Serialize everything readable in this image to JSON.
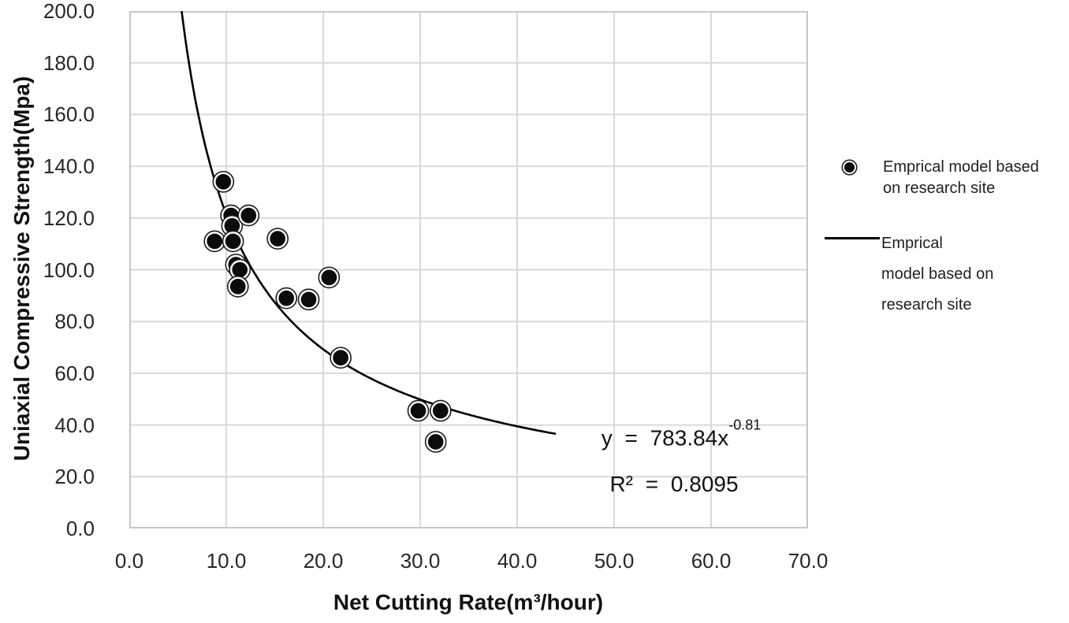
{
  "chart_data": {
    "type": "scatter",
    "title": "",
    "xlabel": "Net Cutting Rate(m³/hour)",
    "ylabel": "Uniaxial Compressive Strength(Mpa)",
    "xlim": [
      0.0,
      70.0
    ],
    "ylim": [
      0.0,
      200.0
    ],
    "x_ticks": [
      "0.0",
      "10.0",
      "20.0",
      "30.0",
      "40.0",
      "50.0",
      "60.0",
      "70.0"
    ],
    "y_ticks": [
      "0.0",
      "20.0",
      "40.0",
      "60.0",
      "80.0",
      "100.0",
      "120.0",
      "140.0",
      "160.0",
      "180.0",
      "200.0"
    ],
    "grid": true,
    "legend_position": "right",
    "series": [
      {
        "name": "Emprical model based on research site",
        "type": "scatter",
        "marker": "circle-ring-dot",
        "color": "#0b0b0b",
        "points": [
          [
            8.8,
            111
          ],
          [
            9.7,
            134
          ],
          [
            10.5,
            121
          ],
          [
            10.6,
            117
          ],
          [
            10.7,
            111
          ],
          [
            11.0,
            102
          ],
          [
            11.4,
            100
          ],
          [
            11.2,
            93.5
          ],
          [
            12.3,
            121
          ],
          [
            15.3,
            112
          ],
          [
            16.2,
            89
          ],
          [
            18.5,
            88.5
          ],
          [
            20.6,
            97
          ],
          [
            21.8,
            66
          ],
          [
            29.8,
            45.5
          ],
          [
            32.1,
            45.5
          ],
          [
            31.6,
            33.5
          ]
        ]
      },
      {
        "name": "Emprical model based on research site",
        "type": "power_trendline",
        "coefficient": 783.84,
        "exponent": -0.81,
        "x_start": 5.4,
        "x_end": 44.0,
        "color": "#000000"
      }
    ],
    "annotation": {
      "equation_base": "y = 783.84x",
      "equation_exponent": "-0.81",
      "r_squared": "R² = 0.8095"
    }
  },
  "legend": {
    "items": [
      {
        "lines": [
          "Emprical model based",
          "on research site"
        ]
      },
      {
        "lines": [
          "Emprical",
          "model based on",
          "research site"
        ]
      }
    ]
  },
  "colors": {
    "grid": "#d9d9d9",
    "plot_border": "#c6c6c6",
    "marker": "#0b0b0b",
    "trendline": "#000000",
    "text": "#1a1a1a"
  }
}
